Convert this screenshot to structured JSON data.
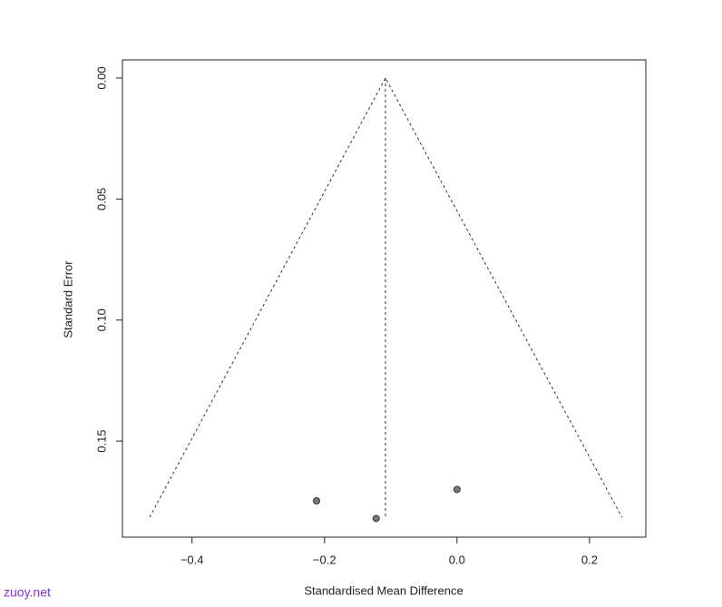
{
  "chart_data": {
    "type": "scatter",
    "x_label": "Standardised Mean Difference",
    "y_label": "Standard Error",
    "series": [
      {
        "color": "#777777",
        "x": [
          -0.212,
          -0.122,
          0.0
        ],
        "values": [
          0.1747,
          0.182,
          0.17
        ]
      }
    ],
    "reference_lines": [
      {
        "x": [
          -0.108,
          -0.108
        ],
        "values": [
          0,
          0.1815
        ]
      },
      {
        "x": [
          -0.464,
          -0.108,
          0.249
        ],
        "values": [
          0.1815,
          0,
          0.1815
        ]
      }
    ],
    "xlim": [
      -0.505,
      0.285
    ],
    "xticks": [
      {
        "value": -0.4,
        "label": "−0.4"
      },
      {
        "value": -0.2,
        "label": "−0.2"
      },
      {
        "value": 0,
        "label": "0.0"
      },
      0.2
    ],
    "ylim": [
      0.1897,
      -0.0075
    ],
    "yticks": [
      {
        "value": 0,
        "label": "0.00"
      },
      0.05,
      {
        "value": 0.1,
        "label": "0.10"
      },
      0.15
    ],
    "grid": false,
    "watermark": "zuoy.net"
  }
}
